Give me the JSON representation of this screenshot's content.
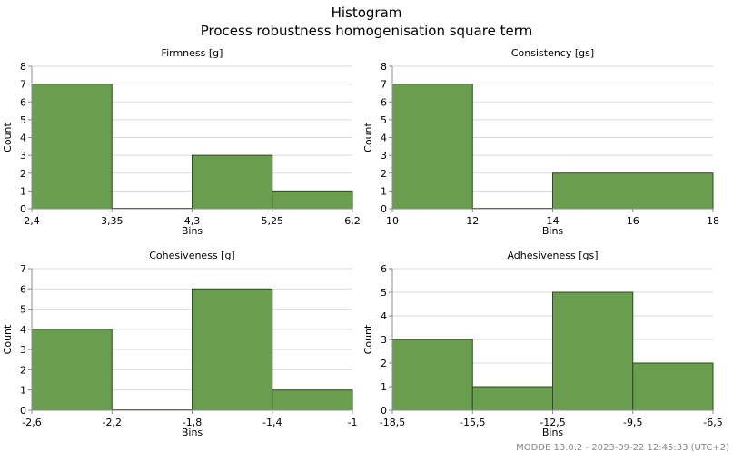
{
  "title": "Histogram",
  "subtitle": "Process robustness homogenisation square term",
  "footer": "MODDE 13.0.2 - 2023-09-22 12:45:33 (UTC+2)",
  "colors": {
    "bar_fill": "#6a9e4f",
    "bar_stroke": "#2f4a22",
    "grid": "#d9d9d9",
    "axis": "#8c8c8c"
  },
  "chart_data": [
    {
      "type": "bar",
      "title": "Firmness [g]",
      "xlabel": "Bins",
      "ylabel": "Count",
      "ylim": [
        0,
        8
      ],
      "yticks": [
        "0",
        "1",
        "2",
        "3",
        "4",
        "5",
        "6",
        "7",
        "8"
      ],
      "xticks": [
        "2,4",
        "3,35",
        "4,3",
        "5,25",
        "6,2"
      ],
      "bins": [
        {
          "from": "2,4",
          "to": "3,35",
          "count": 7
        },
        {
          "from": "3,35",
          "to": "4,3",
          "count": 0
        },
        {
          "from": "4,3",
          "to": "5,25",
          "count": 3
        },
        {
          "from": "5,25",
          "to": "6,2",
          "count": 1
        }
      ],
      "grid": true
    },
    {
      "type": "bar",
      "title": "Consistency [gs]",
      "xlabel": "Bins",
      "ylabel": "Count",
      "ylim": [
        0,
        8
      ],
      "yticks": [
        "0",
        "1",
        "2",
        "3",
        "4",
        "5",
        "6",
        "7",
        "8"
      ],
      "xticks": [
        "10",
        "12",
        "14",
        "16",
        "18"
      ],
      "bins": [
        {
          "from": "10",
          "to": "12",
          "count": 7
        },
        {
          "from": "12",
          "to": "14",
          "count": 0
        },
        {
          "from": "14",
          "to": "18",
          "count": 2
        }
      ],
      "grid": true
    },
    {
      "type": "bar",
      "title": "Cohesiveness [g]",
      "xlabel": "Bins",
      "ylabel": "Count",
      "ylim": [
        0,
        7
      ],
      "yticks": [
        "0",
        "1",
        "2",
        "3",
        "4",
        "5",
        "6",
        "7"
      ],
      "xticks": [
        "-2,6",
        "-2,2",
        "-1,8",
        "-1,4",
        "-1"
      ],
      "bins": [
        {
          "from": "-2,6",
          "to": "-2,2",
          "count": 4
        },
        {
          "from": "-2,2",
          "to": "-1,8",
          "count": 0
        },
        {
          "from": "-1,8",
          "to": "-1,4",
          "count": 6
        },
        {
          "from": "-1,4",
          "to": "-1",
          "count": 1
        }
      ],
      "grid": true
    },
    {
      "type": "bar",
      "title": "Adhesiveness [gs]",
      "xlabel": "Bins",
      "ylabel": "Count",
      "ylim": [
        0,
        6
      ],
      "yticks": [
        "0",
        "1",
        "2",
        "3",
        "4",
        "5",
        "6"
      ],
      "xticks": [
        "-18,5",
        "-15,5",
        "-12,5",
        "-9,5",
        "-6,5"
      ],
      "bins": [
        {
          "from": "-18,5",
          "to": "-15,5",
          "count": 3
        },
        {
          "from": "-15,5",
          "to": "-12,5",
          "count": 1
        },
        {
          "from": "-12,5",
          "to": "-9,5",
          "count": 5
        },
        {
          "from": "-9,5",
          "to": "-6,5",
          "count": 2
        }
      ],
      "grid": true
    }
  ]
}
